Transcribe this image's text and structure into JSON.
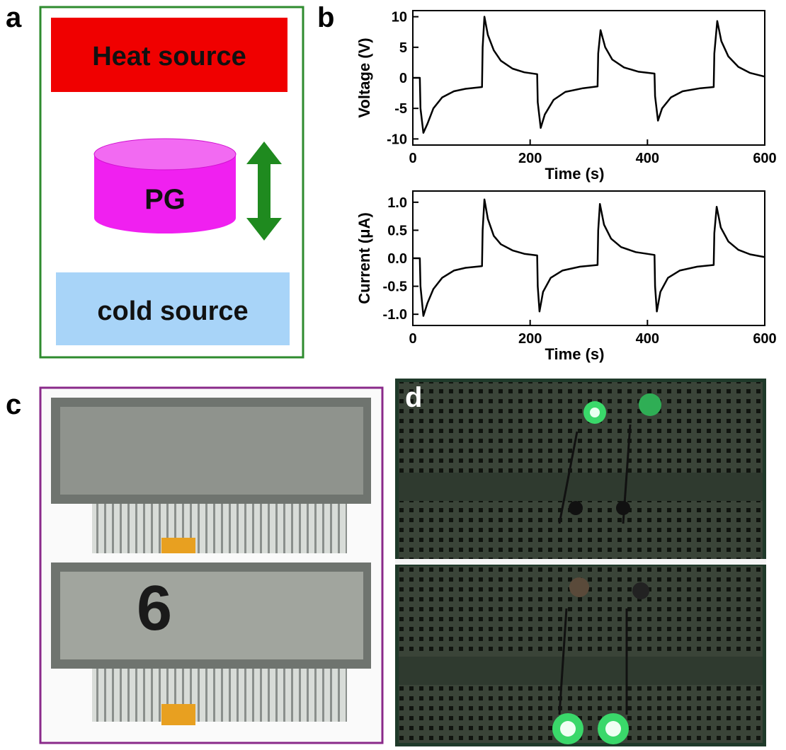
{
  "panel_labels": [
    "a",
    "b",
    "c",
    "d"
  ],
  "diagram": {
    "heat": "Heat source",
    "pg": "PG",
    "cold": "cold source"
  },
  "photo_c": {
    "digit": "6"
  },
  "chart_data": [
    {
      "type": "line",
      "xlabel": "Time (s)",
      "ylabel": "Voltage (V)",
      "color": "#000000",
      "xlim": [
        0,
        600
      ],
      "ylim": [
        -11,
        11
      ],
      "xticks": [
        0,
        200,
        400,
        600
      ],
      "yticks": [
        10,
        5,
        0,
        -5,
        -10
      ],
      "x": [
        0,
        12,
        13,
        18,
        25,
        35,
        50,
        70,
        90,
        118,
        119,
        122,
        128,
        138,
        150,
        170,
        190,
        212,
        213,
        218,
        225,
        240,
        260,
        290,
        315,
        316,
        320,
        328,
        340,
        360,
        385,
        412,
        413,
        418,
        425,
        440,
        460,
        490,
        513,
        514,
        519,
        526,
        538,
        555,
        575,
        600
      ],
      "values": [
        0,
        0,
        -5,
        -9,
        -7.5,
        -5,
        -3.2,
        -2.2,
        -1.8,
        -1.5,
        5,
        10,
        7,
        4.5,
        2.8,
        1.5,
        0.9,
        0.6,
        -4,
        -8.2,
        -6,
        -3.6,
        -2.3,
        -1.7,
        -1.4,
        4,
        7.8,
        5,
        3,
        1.7,
        1,
        0.7,
        -3,
        -7,
        -5,
        -3.2,
        -2.2,
        -1.7,
        -1.5,
        4,
        9.3,
        6,
        3.5,
        1.8,
        0.8,
        0.2
      ]
    },
    {
      "type": "line",
      "xlabel": "Time (s)",
      "ylabel": "Current (μA)",
      "color": "#000000",
      "xlim": [
        0,
        600
      ],
      "ylim": [
        -1.2,
        1.2
      ],
      "xticks": [
        0,
        200,
        400,
        600
      ],
      "yticks": [
        {
          "value": 1,
          "label": "1.0"
        },
        0.5,
        {
          "value": 0,
          "label": "0.0"
        },
        -0.5,
        {
          "value": -1,
          "label": "-1.0"
        }
      ],
      "x": [
        0,
        12,
        13,
        18,
        25,
        35,
        50,
        70,
        90,
        118,
        119,
        122,
        128,
        138,
        150,
        170,
        190,
        212,
        213,
        216,
        222,
        235,
        255,
        285,
        315,
        316,
        319,
        326,
        338,
        355,
        380,
        412,
        413,
        416,
        422,
        435,
        455,
        485,
        513,
        514,
        518,
        525,
        538,
        555,
        575,
        600
      ],
      "values": [
        0,
        0,
        -0.5,
        -1.03,
        -0.8,
        -0.55,
        -0.35,
        -0.22,
        -0.17,
        -0.14,
        0.5,
        1.05,
        0.7,
        0.4,
        0.25,
        0.14,
        0.08,
        0.05,
        -0.5,
        -0.95,
        -0.6,
        -0.35,
        -0.22,
        -0.15,
        -0.12,
        0.5,
        0.97,
        0.6,
        0.35,
        0.2,
        0.11,
        0.06,
        -0.5,
        -0.95,
        -0.6,
        -0.35,
        -0.22,
        -0.15,
        -0.12,
        0.45,
        0.92,
        0.55,
        0.3,
        0.15,
        0.07,
        0.02
      ]
    }
  ]
}
